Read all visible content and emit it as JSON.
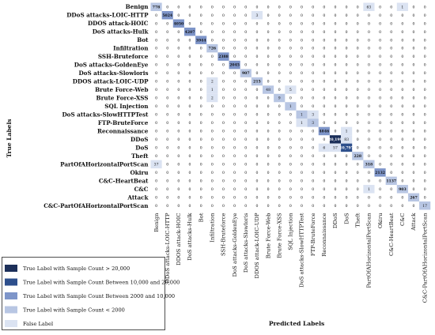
{
  "chart_data": {
    "type": "heatmap",
    "xlabel": "Predicted Labels",
    "ylabel": "True Labels",
    "labels": [
      "Benign",
      "DDoS attacks-LOIC-HTTP",
      "DDOS attack-HOIC",
      "DoS attacks-Hulk",
      "Bot",
      "Infiltration",
      "SSH-Bruteforce",
      "DoS attacks-GoldenEye",
      "DoS attacks-Slowloris",
      "DDOS attack-LOIC-UDP",
      "Brute Force-Web",
      "Brute Force-XSS",
      "SQL Injection",
      "DoS attacks-SlowHTTPTest",
      "FTP-BruteForce",
      "Reconnaissance",
      "DDoS",
      "DoS",
      "Theft",
      "PartOfAHorizontalPortScan",
      "Okiru",
      "C&C-HeartBeat",
      "C&C",
      "Attack",
      "C&C-PartOfAHorizontalPortScan"
    ],
    "matrix": [
      [
        778,
        0,
        0,
        0,
        0,
        0,
        0,
        0,
        0,
        0,
        0,
        0,
        0,
        0,
        0,
        0,
        0,
        0,
        0,
        63,
        0,
        0,
        1,
        0,
        0
      ],
      [
        0,
        5024,
        0,
        0,
        0,
        0,
        0,
        0,
        0,
        3,
        0,
        0,
        0,
        0,
        0,
        0,
        0,
        0,
        0,
        0,
        0,
        0,
        0,
        0,
        0
      ],
      [
        0,
        0,
        4050,
        0,
        0,
        0,
        0,
        0,
        0,
        0,
        0,
        0,
        0,
        0,
        0,
        0,
        0,
        0,
        0,
        0,
        0,
        0,
        0,
        0,
        0
      ],
      [
        0,
        0,
        0,
        4207,
        0,
        0,
        0,
        0,
        0,
        0,
        0,
        0,
        0,
        0,
        0,
        0,
        0,
        0,
        0,
        0,
        0,
        0,
        0,
        0,
        0
      ],
      [
        0,
        0,
        0,
        0,
        3944,
        0,
        0,
        0,
        0,
        0,
        0,
        0,
        0,
        0,
        0,
        0,
        0,
        0,
        0,
        0,
        0,
        0,
        0,
        0,
        0
      ],
      [
        0,
        0,
        0,
        0,
        0,
        726,
        0,
        0,
        0,
        0,
        0,
        0,
        0,
        0,
        0,
        0,
        0,
        0,
        0,
        0,
        0,
        0,
        0,
        0,
        0
      ],
      [
        0,
        0,
        0,
        0,
        0,
        0,
        2388,
        0,
        0,
        0,
        0,
        0,
        0,
        0,
        0,
        0,
        0,
        0,
        0,
        0,
        0,
        0,
        0,
        0,
        0
      ],
      [
        0,
        0,
        0,
        0,
        0,
        0,
        0,
        2045,
        0,
        0,
        0,
        0,
        0,
        0,
        0,
        0,
        0,
        0,
        0,
        0,
        0,
        0,
        0,
        0,
        0
      ],
      [
        0,
        0,
        0,
        0,
        0,
        0,
        0,
        0,
        907,
        0,
        0,
        0,
        0,
        0,
        0,
        0,
        0,
        0,
        0,
        0,
        0,
        0,
        0,
        0,
        0
      ],
      [
        0,
        0,
        0,
        0,
        0,
        2,
        0,
        0,
        0,
        215,
        0,
        0,
        0,
        0,
        0,
        0,
        0,
        0,
        0,
        0,
        0,
        0,
        0,
        0,
        0
      ],
      [
        0,
        0,
        0,
        0,
        0,
        1,
        0,
        0,
        0,
        0,
        48,
        0,
        5,
        0,
        0,
        0,
        0,
        0,
        0,
        0,
        0,
        0,
        0,
        0,
        0
      ],
      [
        0,
        0,
        0,
        0,
        0,
        2,
        0,
        0,
        0,
        0,
        0,
        9,
        0,
        0,
        0,
        0,
        0,
        0,
        0,
        0,
        0,
        0,
        0,
        0,
        0
      ],
      [
        0,
        0,
        0,
        0,
        0,
        0,
        0,
        0,
        0,
        0,
        0,
        0,
        1,
        0,
        0,
        0,
        0,
        0,
        0,
        0,
        0,
        0,
        0,
        0,
        0
      ],
      [
        0,
        0,
        0,
        0,
        0,
        0,
        0,
        0,
        0,
        0,
        0,
        0,
        0,
        1,
        3,
        0,
        0,
        0,
        0,
        0,
        0,
        0,
        0,
        0,
        0
      ],
      [
        0,
        0,
        0,
        0,
        0,
        0,
        0,
        0,
        0,
        0,
        0,
        0,
        0,
        1,
        3,
        0,
        0,
        0,
        0,
        0,
        0,
        0,
        0,
        0,
        0
      ],
      [
        0,
        0,
        0,
        0,
        0,
        0,
        0,
        0,
        0,
        0,
        0,
        0,
        0,
        0,
        0,
        4846,
        0,
        1,
        0,
        0,
        0,
        0,
        0,
        0,
        0
      ],
      [
        0,
        0,
        0,
        0,
        0,
        0,
        0,
        0,
        0,
        0,
        0,
        0,
        0,
        0,
        0,
        0,
        20199,
        83,
        0,
        0,
        0,
        0,
        0,
        0,
        0
      ],
      [
        0,
        0,
        0,
        0,
        0,
        0,
        0,
        0,
        0,
        0,
        0,
        0,
        0,
        0,
        0,
        6,
        57,
        10797,
        0,
        0,
        0,
        0,
        0,
        0,
        0
      ],
      [
        0,
        0,
        0,
        0,
        0,
        0,
        0,
        0,
        0,
        0,
        0,
        0,
        0,
        0,
        0,
        0,
        0,
        0,
        228,
        0,
        0,
        0,
        0,
        0,
        0
      ],
      [
        37,
        0,
        0,
        0,
        0,
        0,
        0,
        0,
        0,
        0,
        0,
        0,
        0,
        0,
        0,
        0,
        0,
        0,
        0,
        318,
        0,
        0,
        0,
        0,
        0
      ],
      [
        0,
        0,
        0,
        0,
        0,
        0,
        0,
        0,
        0,
        0,
        0,
        0,
        0,
        0,
        0,
        0,
        0,
        0,
        0,
        0,
        2132,
        0,
        0,
        0,
        0
      ],
      [
        0,
        0,
        0,
        0,
        0,
        0,
        0,
        0,
        0,
        0,
        0,
        0,
        0,
        0,
        0,
        0,
        0,
        0,
        0,
        0,
        0,
        1137,
        0,
        0,
        0
      ],
      [
        0,
        0,
        0,
        0,
        0,
        0,
        0,
        0,
        0,
        0,
        0,
        0,
        0,
        0,
        0,
        0,
        0,
        0,
        0,
        1,
        0,
        0,
        903,
        0,
        0
      ],
      [
        0,
        0,
        0,
        0,
        0,
        0,
        0,
        0,
        0,
        0,
        0,
        0,
        0,
        0,
        0,
        0,
        0,
        0,
        0,
        0,
        0,
        0,
        0,
        267,
        0
      ],
      [
        0,
        0,
        0,
        0,
        0,
        0,
        0,
        0,
        0,
        0,
        0,
        0,
        0,
        0,
        0,
        0,
        0,
        0,
        0,
        0,
        0,
        0,
        0,
        0,
        17
      ]
    ],
    "cell_text": {
      "16,16": "20,199",
      "17,17": "10,797"
    },
    "legend": [
      {
        "label": "True Label with Sample Count > 20,000",
        "color": "#1c2f59"
      },
      {
        "label": "True Label with Sample Count Between 10,000 and 20,000",
        "color": "#2d4f8c"
      },
      {
        "label": "True Label with Sample Count Between 2000 and 10,000",
        "color": "#7e95c9"
      },
      {
        "label": "True Label with Sample Count < 2000",
        "color": "#b8c6e3"
      },
      {
        "label": "False Label",
        "color": "#dbe3f2"
      }
    ],
    "grid": false
  }
}
